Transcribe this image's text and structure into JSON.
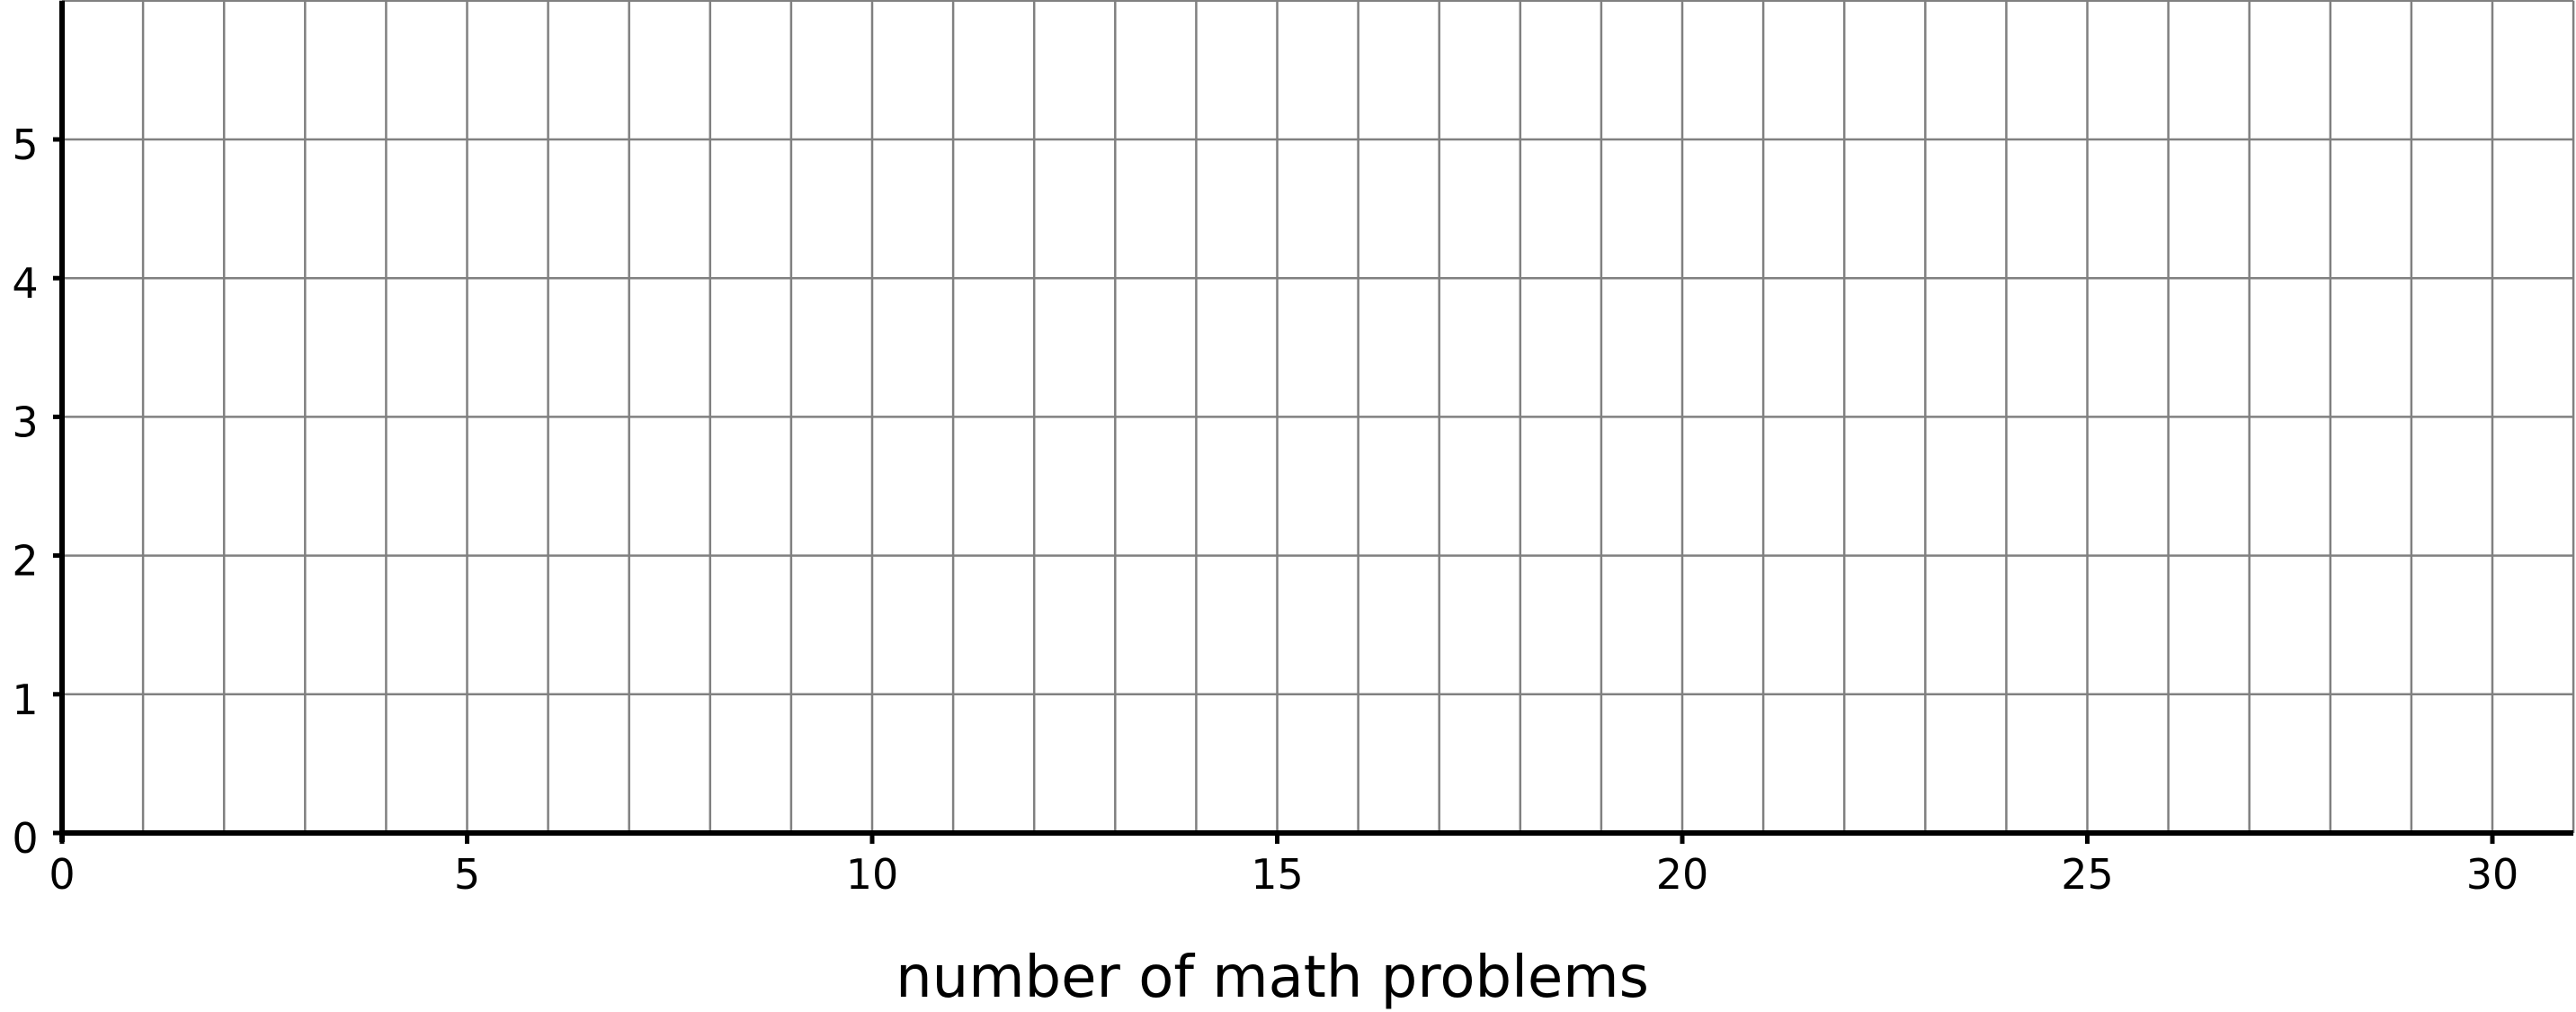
{
  "chart_data": {
    "type": "scatter",
    "title": "",
    "xlabel": "number of math problems",
    "ylabel": "",
    "xlim": [
      0,
      31
    ],
    "ylim": [
      0,
      6
    ],
    "x_ticks": [
      0,
      5,
      10,
      15,
      20,
      25,
      30
    ],
    "y_ticks": [
      0,
      1,
      2,
      3,
      4,
      5
    ],
    "x_grid_step": 1,
    "y_grid_step": 1,
    "grid": true,
    "series": [],
    "colors": {
      "grid": "#808080",
      "axis": "#000000"
    }
  }
}
